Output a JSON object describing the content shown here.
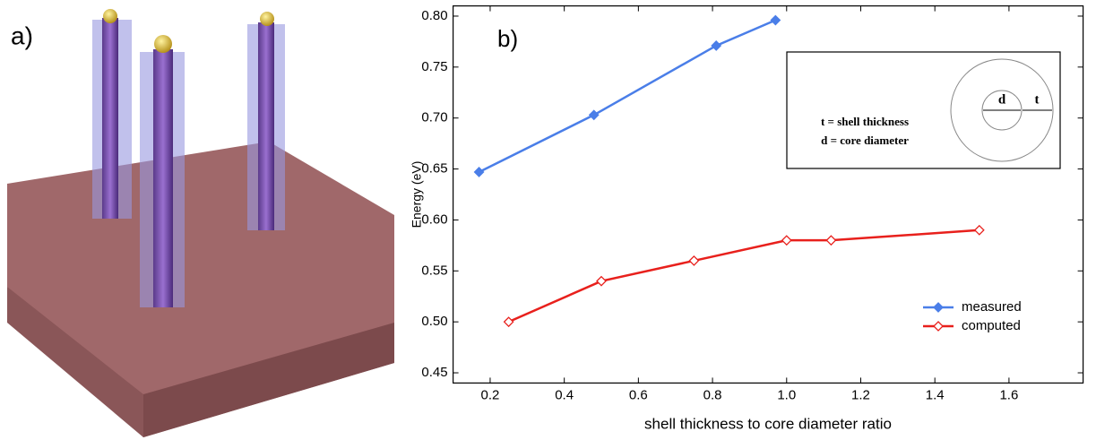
{
  "panel_labels": [
    "a)",
    "b)"
  ],
  "chart_data": {
    "type": "line",
    "xlabel": "shell thickness to core diameter ratio",
    "ylabel": "Energy (eV)",
    "xlim": [
      0.1,
      1.8
    ],
    "ylim": [
      0.44,
      0.81
    ],
    "xticks": [
      0.2,
      0.4,
      0.6,
      0.8,
      {
        "value": 1.0,
        "label": "1.0"
      },
      1.2,
      1.4,
      1.6
    ],
    "yticks": [
      0.45,
      {
        "value": 0.5,
        "label": "0.50"
      },
      0.55,
      {
        "value": 0.6,
        "label": "0.60"
      },
      0.65,
      {
        "value": 0.7,
        "label": "0.70"
      },
      0.75,
      {
        "value": 0.8,
        "label": "0.80"
      }
    ],
    "legend": "lower right",
    "series": [
      {
        "name": "measured",
        "color": "#4a7ee8",
        "marker": "diamond",
        "filled": true,
        "x": [
          0.17,
          0.48,
          0.81,
          0.97
        ],
        "values": [
          0.647,
          0.703,
          0.771,
          0.796
        ]
      },
      {
        "name": "computed",
        "color": "#e8201c",
        "marker": "diamond",
        "filled": false,
        "x": [
          0.25,
          0.5,
          0.75,
          1.0,
          1.12,
          1.52
        ],
        "values": [
          0.5,
          0.54,
          0.56,
          0.58,
          0.58,
          0.59
        ]
      }
    ],
    "inset": {
      "definitions": [
        "t = shell thickness",
        "d = core diameter"
      ],
      "symbols": [
        "d",
        "t"
      ]
    }
  }
}
